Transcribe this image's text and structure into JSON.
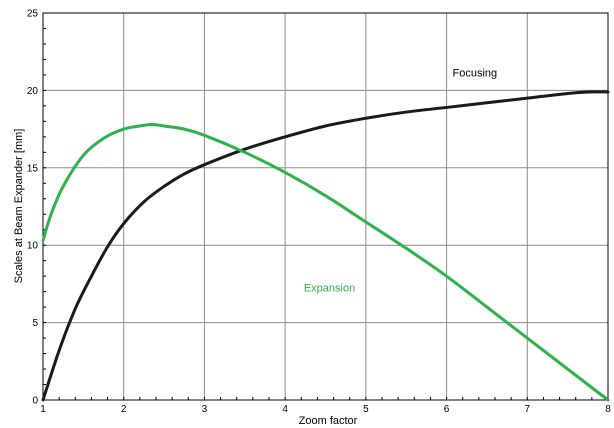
{
  "chart_data": {
    "type": "line",
    "title": "",
    "xlabel": "Zoom factor",
    "ylabel": "Scales at Beam Expander [mm]",
    "xlim": [
      1,
      8
    ],
    "ylim": [
      0,
      25
    ],
    "x_ticks": [
      1,
      2,
      3,
      4,
      5,
      6,
      7,
      8
    ],
    "x_tick_labels": [
      "1",
      "2",
      "3",
      "4",
      "5",
      "6",
      "7",
      "8"
    ],
    "y_ticks": [
      0,
      5,
      10,
      15,
      20,
      25
    ],
    "y_tick_labels": [
      "0",
      "5",
      "10",
      "15",
      "20",
      "25"
    ],
    "grid": true,
    "legend": "none",
    "series": [
      {
        "name": "Focusing",
        "color": "#1a1a1a",
        "x": [
          1.0,
          1.2,
          1.4,
          1.6,
          1.8,
          2.0,
          2.25,
          2.5,
          2.75,
          3.0,
          3.5,
          4.0,
          4.5,
          5.0,
          5.5,
          6.0,
          6.5,
          7.0,
          7.5,
          7.75,
          8.0
        ],
        "y": [
          0.0,
          3.2,
          5.9,
          8.0,
          9.9,
          11.4,
          12.8,
          13.8,
          14.6,
          15.2,
          16.2,
          17.0,
          17.7,
          18.2,
          18.6,
          18.9,
          19.2,
          19.5,
          19.8,
          19.9,
          19.9
        ]
      },
      {
        "name": "Expansion",
        "color": "#2db34a",
        "x": [
          1.0,
          1.1,
          1.25,
          1.5,
          1.75,
          2.0,
          2.2,
          2.35,
          2.5,
          2.75,
          3.0,
          3.5,
          4.0,
          4.5,
          5.0,
          5.5,
          6.0,
          6.5,
          7.0,
          7.5,
          8.0
        ],
        "y": [
          10.3,
          12.0,
          13.8,
          15.8,
          16.9,
          17.5,
          17.7,
          17.8,
          17.7,
          17.5,
          17.1,
          16.0,
          14.7,
          13.2,
          11.5,
          9.8,
          8.0,
          6.0,
          4.0,
          2.0,
          0.0
        ]
      }
    ],
    "annotations": [
      {
        "text": "Focusing",
        "x": 6.35,
        "y": 20.9,
        "color": "#000000"
      },
      {
        "text": "Expansion",
        "x": 4.55,
        "y": 7.0,
        "color": "#2db34a"
      }
    ]
  }
}
